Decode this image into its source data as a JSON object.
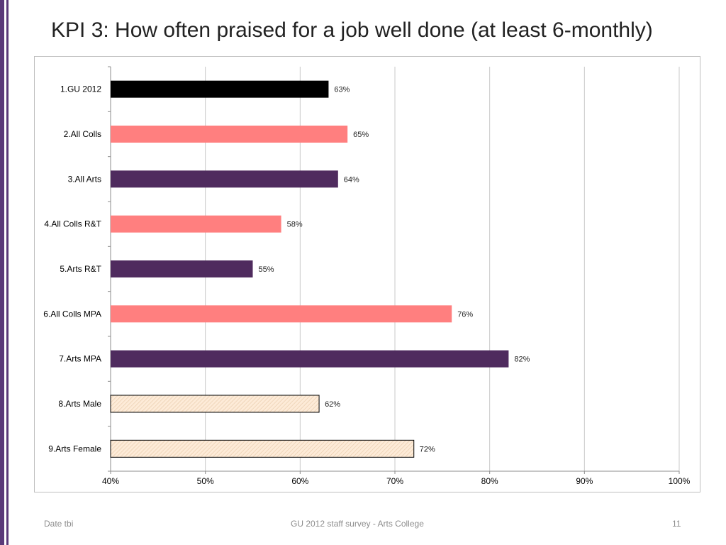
{
  "slide": {
    "title": "KPI 3: How often praised for a job well done (at least 6-monthly)",
    "footer_left": "Date tbi",
    "footer_center": "GU 2012 staff survey -  Arts College",
    "footer_right": "11"
  },
  "colors": {
    "accent": "#5b3a7a",
    "black": "#000000",
    "pink": "#ff7f7f",
    "purple": "#4f2b5e",
    "cream": "#fde9d9",
    "grid": "#c8c8c8"
  },
  "chart_data": {
    "type": "bar",
    "orientation": "horizontal",
    "title": "",
    "xlabel": "",
    "ylabel": "",
    "xlim": [
      40,
      100
    ],
    "x_ticks": [
      40,
      50,
      60,
      70,
      80,
      90,
      100
    ],
    "x_tick_labels": [
      "40%",
      "50%",
      "60%",
      "70%",
      "80%",
      "90%",
      "100%"
    ],
    "grid": true,
    "categories": [
      "1.GU 2012",
      "2.All Colls",
      "3.All Arts",
      "4.All Colls R&T",
      "5.Arts R&T",
      "6.All Colls MPA",
      "7.Arts MPA",
      "8.Arts Male",
      "9.Arts Female"
    ],
    "values": [
      63,
      65,
      64,
      58,
      55,
      76,
      82,
      62,
      72
    ],
    "value_labels": [
      "63%",
      "65%",
      "64%",
      "58%",
      "55%",
      "76%",
      "82%",
      "62%",
      "72%"
    ],
    "bar_styles": [
      "black",
      "pink",
      "purple",
      "pink",
      "purple",
      "pink",
      "purple",
      "cream",
      "cream"
    ]
  }
}
